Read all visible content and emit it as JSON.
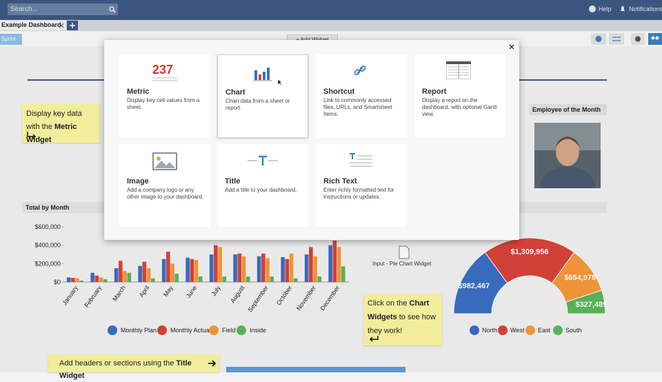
{
  "top_bar": {
    "search_placeholder": "Search...",
    "help": "Help",
    "notifications": "Notifications"
  },
  "tabs": {
    "active": "Example Dashboard"
  },
  "toolbar": {
    "left_button": "Sprint",
    "add_widget": "+ Add Widget"
  },
  "notes": {
    "metric_note": {
      "text": "Display key data with the",
      "bold": "Metric Widget"
    },
    "chart_note": {
      "before": "Click on the",
      "bold": "Chart Widgets",
      "after": "to see how they work!"
    },
    "title_note": {
      "text": "Add headers or sections using the",
      "bold": "Title Widget"
    }
  },
  "employee_widget": {
    "title": "Employee of the Month"
  },
  "input_label": "Input - Pie Chart Widget",
  "modal": {
    "cards": [
      {
        "name": "Metric",
        "icon_text": "237",
        "description": "Display key cell values from a sheet."
      },
      {
        "name": "Chart",
        "description": "Chart data from a sheet or report."
      },
      {
        "name": "Shortcut",
        "description": "Link to commonly accessed files, URLs, and Smartsheet Items."
      },
      {
        "name": "Report",
        "description": "Display a report on the dashboard, with optional Gantt view."
      },
      {
        "name": "Image",
        "description": "Add a company logo or any other image to your dashboard."
      },
      {
        "name": "Title",
        "description": "Add a title to your dashboard."
      },
      {
        "name": "Rich Text",
        "description": "Enter richly formatted text for instructions or updates."
      }
    ]
  },
  "chart_data": [
    {
      "type": "bar",
      "title": "Total by Month",
      "categories": [
        "January",
        "February",
        "March",
        "April",
        "May",
        "June",
        "July",
        "August",
        "September",
        "October",
        "November",
        "December"
      ],
      "series": [
        {
          "name": "Monthly Plan",
          "color": "#3b6fc6",
          "values": [
            50000,
            100000,
            150000,
            175000,
            250000,
            265000,
            300000,
            300000,
            280000,
            270000,
            300000,
            400000
          ]
        },
        {
          "name": "Monthly Actual",
          "color": "#d9443a",
          "values": [
            45000,
            70000,
            230000,
            220000,
            330000,
            250000,
            400000,
            310000,
            310000,
            250000,
            380000,
            450000
          ]
        },
        {
          "name": "Field",
          "color": "#f79b3b",
          "values": [
            40000,
            50000,
            120000,
            150000,
            200000,
            240000,
            380000,
            280000,
            260000,
            310000,
            280000,
            380000
          ]
        },
        {
          "name": "Inside",
          "color": "#5cb85c",
          "values": [
            15000,
            30000,
            100000,
            40000,
            90000,
            60000,
            60000,
            60000,
            60000,
            40000,
            60000,
            170000
          ]
        }
      ],
      "ylim": [
        0,
        600000
      ],
      "yticks": [
        {
          "value": 0,
          "label": "$0"
        },
        {
          "value": 200000,
          "label": "$200,000"
        },
        {
          "value": 400000,
          "label": "$400,000"
        },
        {
          "value": 600000,
          "label": "$600,000"
        }
      ]
    },
    {
      "type": "pie",
      "categories": [
        "North",
        "West",
        "East",
        "South"
      ],
      "colors": [
        "#3b6fc6",
        "#d9443a",
        "#f79b3b",
        "#5cb85c"
      ],
      "values": [
        982467,
        1309956,
        654978,
        327489
      ],
      "value_labels": [
        "$982,467",
        "$1,309,956",
        "$654,978",
        "$327,489"
      ]
    }
  ]
}
